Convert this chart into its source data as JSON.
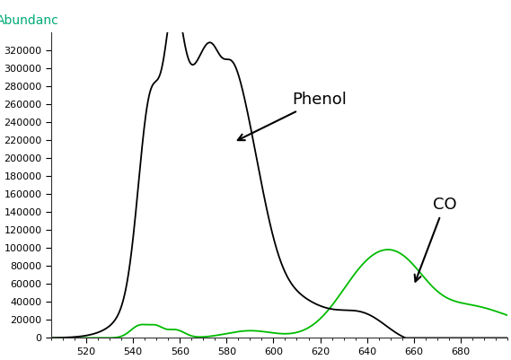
{
  "title": "",
  "ylabel": "Abundanc",
  "ylabel_color": "#00aa77",
  "xlabel": "",
  "xlim": [
    505,
    700
  ],
  "ylim": [
    0,
    340000
  ],
  "yticks": [
    0,
    20000,
    40000,
    60000,
    80000,
    100000,
    120000,
    140000,
    160000,
    180000,
    200000,
    220000,
    240000,
    260000,
    280000,
    300000,
    320000
  ],
  "xticks": [
    520,
    540,
    560,
    580,
    600,
    620,
    640,
    660,
    680
  ],
  "background_color": "#ffffff",
  "phenol_color": "#000000",
  "co_color": "#00bb00",
  "phenol_label": "Phenol",
  "co_label": "CO"
}
